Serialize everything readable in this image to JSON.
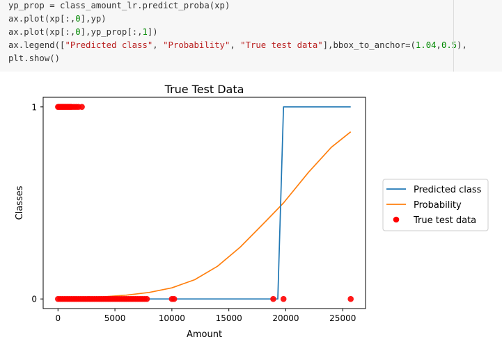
{
  "code": {
    "lines": [
      [
        {
          "t": "yp_prop = class_amount_lr.predict_proba(xp)",
          "c": ""
        }
      ],
      [
        {
          "t": "ax.plot(xp[:,",
          "c": ""
        },
        {
          "t": "0",
          "c": "num"
        },
        {
          "t": "],yp)",
          "c": ""
        }
      ],
      [
        {
          "t": "ax.plot(xp[:,",
          "c": ""
        },
        {
          "t": "0",
          "c": "num"
        },
        {
          "t": "],yp_prop[:,",
          "c": ""
        },
        {
          "t": "1",
          "c": "num"
        },
        {
          "t": "])",
          "c": ""
        }
      ],
      [
        {
          "t": "ax.legend([",
          "c": ""
        },
        {
          "t": "\"Predicted class\"",
          "c": "str"
        },
        {
          "t": ", ",
          "c": ""
        },
        {
          "t": "\"Probability\"",
          "c": "str"
        },
        {
          "t": ", ",
          "c": ""
        },
        {
          "t": "\"True test data\"",
          "c": "str"
        },
        {
          "t": "],bbox_to_anchor=(",
          "c": ""
        },
        {
          "t": "1.04",
          "c": "num"
        },
        {
          "t": ",",
          "c": ""
        },
        {
          "t": "0.5",
          "c": "num"
        },
        {
          "t": "),",
          "c": ""
        }
      ],
      [
        {
          "t": "plt.show()",
          "c": ""
        }
      ]
    ]
  },
  "chart_data": {
    "type": "line",
    "title": "True Test Data",
    "xlabel": "Amount",
    "ylabel": "Classes",
    "xlim": [
      -1300,
      27000
    ],
    "ylim": [
      -0.05,
      1.05
    ],
    "xticks": [
      0,
      5000,
      10000,
      15000,
      20000,
      25000
    ],
    "xtick_labels": [
      "0",
      "5000",
      "10000",
      "15000",
      "20000",
      "25000"
    ],
    "yticks": [
      0,
      1
    ],
    "ytick_labels": [
      "0",
      "1"
    ],
    "grid": false,
    "legend_position": "outside right",
    "series": [
      {
        "name": "Predicted class",
        "kind": "line",
        "color": "#1f77b4",
        "x": [
          0,
          19300,
          19800,
          25700
        ],
        "y": [
          0,
          0,
          1,
          1
        ]
      },
      {
        "name": "Probability",
        "kind": "line",
        "color": "#ff7f0e",
        "x": [
          0,
          2000,
          4000,
          6000,
          8000,
          10000,
          12000,
          14000,
          16000,
          18000,
          19800,
          22000,
          24000,
          25700
        ],
        "y": [
          0.003,
          0.006,
          0.011,
          0.02,
          0.034,
          0.058,
          0.1,
          0.17,
          0.27,
          0.39,
          0.5,
          0.66,
          0.79,
          0.87
        ]
      },
      {
        "name": "True test data",
        "kind": "scatter",
        "color": "#ff0000",
        "points": [
          [
            0,
            1
          ],
          [
            100,
            1
          ],
          [
            200,
            1
          ],
          [
            300,
            1
          ],
          [
            400,
            1
          ],
          [
            500,
            1
          ],
          [
            600,
            1
          ],
          [
            700,
            1
          ],
          [
            800,
            1
          ],
          [
            900,
            1
          ],
          [
            1000,
            1
          ],
          [
            1100,
            1
          ],
          [
            1200,
            1
          ],
          [
            1400,
            1
          ],
          [
            1600,
            1
          ],
          [
            1800,
            1
          ],
          [
            2100,
            1
          ],
          [
            0,
            0
          ],
          [
            200,
            0
          ],
          [
            400,
            0
          ],
          [
            600,
            0
          ],
          [
            800,
            0
          ],
          [
            1000,
            0
          ],
          [
            1200,
            0
          ],
          [
            1400,
            0
          ],
          [
            1600,
            0
          ],
          [
            1800,
            0
          ],
          [
            2000,
            0
          ],
          [
            2200,
            0
          ],
          [
            2400,
            0
          ],
          [
            2600,
            0
          ],
          [
            2800,
            0
          ],
          [
            3000,
            0
          ],
          [
            3200,
            0
          ],
          [
            3400,
            0
          ],
          [
            3600,
            0
          ],
          [
            3800,
            0
          ],
          [
            4000,
            0
          ],
          [
            4200,
            0
          ],
          [
            4400,
            0
          ],
          [
            4600,
            0
          ],
          [
            4800,
            0
          ],
          [
            5000,
            0
          ],
          [
            5200,
            0
          ],
          [
            5400,
            0
          ],
          [
            5600,
            0
          ],
          [
            5800,
            0
          ],
          [
            6000,
            0
          ],
          [
            6200,
            0
          ],
          [
            6400,
            0
          ],
          [
            6600,
            0
          ],
          [
            6800,
            0
          ],
          [
            7000,
            0
          ],
          [
            7200,
            0
          ],
          [
            7400,
            0
          ],
          [
            7600,
            0
          ],
          [
            7800,
            0
          ],
          [
            10000,
            0
          ],
          [
            10200,
            0
          ],
          [
            18900,
            0
          ],
          [
            19800,
            0
          ],
          [
            25700,
            0
          ]
        ]
      }
    ]
  }
}
